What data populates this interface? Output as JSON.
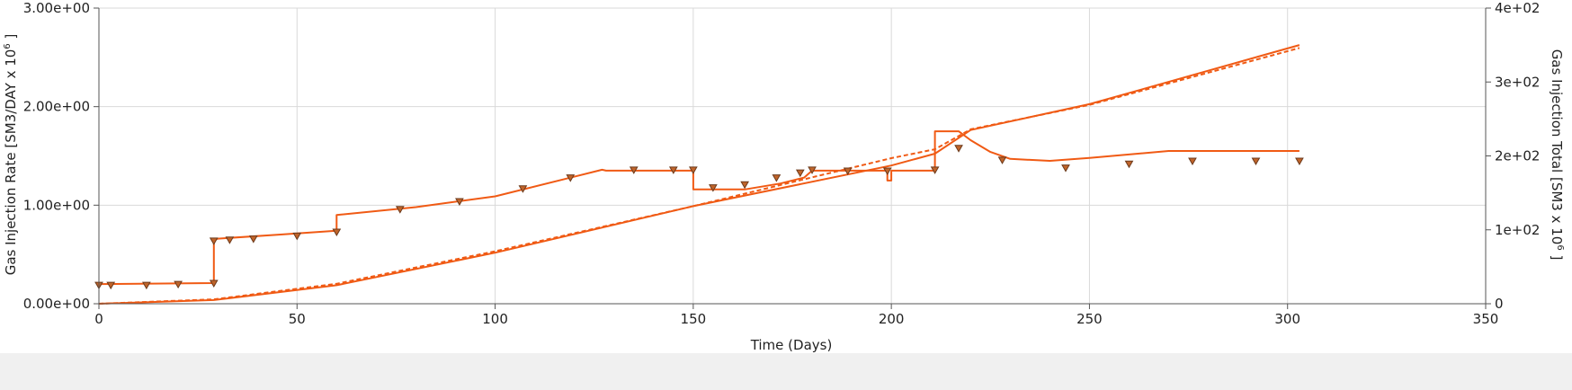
{
  "chart_data": {
    "type": "line",
    "title": "",
    "xlabel": "Time (Days)",
    "ylabel": "Gas Injection Rate [SM3/DAY x 10",
    "ylabel_exp": "6",
    "ylabel_end": " ]",
    "y2label": "Gas Injection Total [SM3 x 10",
    "y2label_exp": "6",
    "y2label_end": " ]",
    "xlim": [
      0,
      350
    ],
    "ylim": [
      0,
      3
    ],
    "y2lim": [
      0,
      400
    ],
    "grid": true,
    "x_ticks": [
      "0",
      "50",
      "100",
      "150",
      "200",
      "250",
      "300",
      "350"
    ],
    "y_ticks": [
      "0.00e+00",
      "1.00e+00",
      "2.00e+00",
      "3.00e+00"
    ],
    "y2_ticks": [
      "0",
      "1e+02",
      "2e+02",
      "3e+02",
      "4e+02"
    ],
    "colors": {
      "line": "#f05a14",
      "marker_fill": "#c0642a",
      "marker_stroke": "#6b3a1c"
    },
    "series": [
      {
        "style": "solid",
        "axis": "left",
        "x": [
          0,
          29,
          29,
          30,
          45,
          60,
          60,
          80,
          100,
          127,
          128,
          150,
          150,
          163,
          172,
          178,
          180,
          185,
          199,
          199,
          200,
          200,
          211,
          211,
          217,
          220,
          225,
          230,
          240,
          250,
          270,
          303
        ],
        "y": [
          0.2,
          0.21,
          0.65,
          0.66,
          0.7,
          0.74,
          0.9,
          0.98,
          1.09,
          1.36,
          1.35,
          1.35,
          1.16,
          1.16,
          1.22,
          1.28,
          1.35,
          1.35,
          1.35,
          1.25,
          1.25,
          1.35,
          1.35,
          1.75,
          1.75,
          1.66,
          1.54,
          1.47,
          1.45,
          1.48,
          1.55,
          1.55
        ]
      },
      {
        "style": "solid",
        "axis": "right",
        "x": [
          0,
          29,
          60,
          100,
          150,
          200,
          211,
          220,
          250,
          303
        ],
        "y": [
          0,
          5,
          25,
          69,
          132,
          187,
          203,
          235,
          270,
          350
        ]
      },
      {
        "style": "dashed",
        "axis": "right",
        "x": [
          0,
          29,
          60,
          100,
          150,
          200,
          211,
          220,
          250,
          303
        ],
        "y": [
          0,
          6,
          27,
          71,
          132,
          197,
          209,
          236,
          269,
          346
        ]
      },
      {
        "style": "markers",
        "axis": "left",
        "x": [
          0,
          3,
          12,
          20,
          29,
          29,
          33,
          39,
          50,
          60,
          76,
          91,
          107,
          119,
          135,
          145,
          150,
          155,
          163,
          171,
          177,
          180,
          189,
          199,
          211,
          217,
          228,
          244,
          260,
          276,
          292,
          303
        ],
        "y": [
          0.19,
          0.19,
          0.19,
          0.2,
          0.21,
          0.64,
          0.65,
          0.66,
          0.69,
          0.73,
          0.96,
          1.04,
          1.17,
          1.28,
          1.36,
          1.36,
          1.36,
          1.18,
          1.21,
          1.28,
          1.33,
          1.36,
          1.35,
          1.35,
          1.36,
          1.58,
          1.46,
          1.38,
          1.42,
          1.45,
          1.45,
          1.45
        ]
      }
    ]
  }
}
